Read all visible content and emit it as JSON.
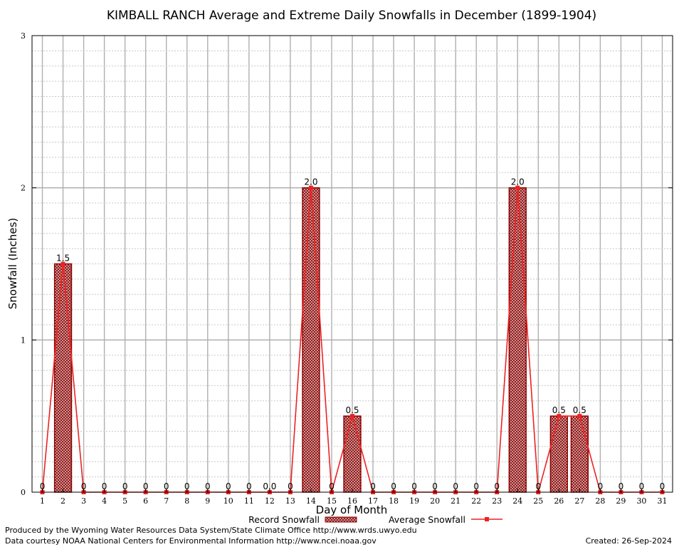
{
  "chart_data": {
    "type": "bar",
    "title": "KIMBALL RANCH Average and Extreme Daily Snowfalls in December (1899-1904)",
    "xlabel": "Day of Month",
    "ylabel": "Snowfall (Inches)",
    "ylim": [
      0,
      3
    ],
    "yticks": [
      "0",
      "1",
      "2",
      "3"
    ],
    "categories": [
      "1",
      "2",
      "3",
      "4",
      "5",
      "6",
      "7",
      "8",
      "9",
      "10",
      "11",
      "12",
      "13",
      "14",
      "15",
      "16",
      "17",
      "18",
      "19",
      "20",
      "21",
      "22",
      "23",
      "24",
      "25",
      "26",
      "27",
      "28",
      "29",
      "30",
      "31"
    ],
    "series": [
      {
        "name": "Record Snowfall",
        "type": "bar",
        "values": [
          0,
          1.5,
          0,
          0,
          0,
          0,
          0,
          0,
          0,
          0,
          0,
          0,
          0,
          2.0,
          0,
          0.5,
          0,
          0,
          0,
          0,
          0,
          0,
          0,
          2.0,
          0,
          0.5,
          0.5,
          0,
          0,
          0,
          0
        ]
      },
      {
        "name": "Average Snowfall",
        "type": "line",
        "values": [
          0,
          1.5,
          0,
          0,
          0,
          0,
          0,
          0,
          0,
          0,
          0,
          0,
          0,
          2.0,
          0,
          0.5,
          0,
          0,
          0,
          0,
          0,
          0,
          0,
          2.0,
          0,
          0.5,
          0.5,
          0,
          0,
          0,
          0
        ]
      }
    ],
    "data_labels": [
      "0",
      "1.5",
      "0",
      "0",
      "0",
      "0",
      "0",
      "0",
      "0",
      "0",
      "0",
      "0.0",
      "0",
      "2.0",
      "0",
      "0.5",
      "0",
      "0",
      "0",
      "0",
      "0",
      "0",
      "0",
      "2.0",
      "0",
      "0.5",
      "0.5",
      "0",
      "0",
      "0",
      "0"
    ],
    "grid": true,
    "legend_position": "bottom",
    "colors": {
      "bar_stroke": "#8b0000",
      "bar_fill": "#c49a9a",
      "line": "#ee2222",
      "grid": "#bbbbbb"
    }
  },
  "footer": {
    "left_line1": "Produced by the Wyoming Water Resources Data System/State Climate Office http://www.wrds.uwyo.edu",
    "left_line2": "Data courtesy NOAA National Centers for Environmental Information http://www.ncei.noaa.gov",
    "created": "Created: 26-Sep-2024"
  }
}
